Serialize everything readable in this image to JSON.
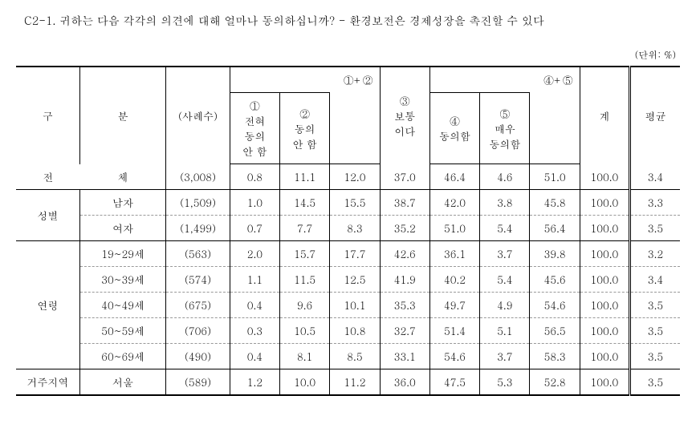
{
  "title": "C2-1. 귀하는 다음 각각의 의견에 대해 얼마나 동의하십니까? - 환경보전은 경제성장을 촉진할 수 있다",
  "unit": "(단위: %)",
  "headers": {
    "gu": "구",
    "bun": "분",
    "sample": "(사례수)",
    "group12": "①+②",
    "group45": "④+⑤",
    "col1": "①\n전혀\n동의\n안 함",
    "col2": "②\n동의\n안 함",
    "col12": "",
    "col3": "③\n보통\n이다",
    "col4": "④\n동의함",
    "col5": "⑤\n매우\n동의함",
    "col45": "",
    "total": "계",
    "avg": "평균"
  },
  "rows": [
    {
      "cat": "전",
      "sub": "체",
      "catspan": 1,
      "sample": "(3,008)",
      "c1": "0.8",
      "c2": "11.1",
      "c12": "12.0",
      "c3": "37.0",
      "c4": "46.4",
      "c5": "4.6",
      "c45": "51.0",
      "tot": "100.0",
      "avg": "3.4",
      "solid": true,
      "fullspan": true
    },
    {
      "cat": "성별",
      "sub": "남자",
      "catspan": 2,
      "sample": "(1,509)",
      "c1": "1.0",
      "c2": "14.5",
      "c12": "15.5",
      "c3": "38.7",
      "c4": "42.0",
      "c5": "3.8",
      "c45": "45.8",
      "tot": "100.0",
      "avg": "3.3"
    },
    {
      "cat": "",
      "sub": "여자",
      "sample": "(1,499)",
      "c1": "0.7",
      "c2": "7.7",
      "c12": "8.3",
      "c3": "35.2",
      "c4": "51.0",
      "c5": "5.4",
      "c45": "56.4",
      "tot": "100.0",
      "avg": "3.5",
      "solid": true
    },
    {
      "cat": "연령",
      "sub": "19~29세",
      "catspan": 5,
      "sample": "(563)",
      "c1": "2.0",
      "c2": "15.7",
      "c12": "17.7",
      "c3": "42.6",
      "c4": "36.1",
      "c5": "3.7",
      "c45": "39.8",
      "tot": "100.0",
      "avg": "3.2"
    },
    {
      "cat": "",
      "sub": "30~39세",
      "sample": "(574)",
      "c1": "1.1",
      "c2": "11.5",
      "c12": "12.5",
      "c3": "41.9",
      "c4": "40.2",
      "c5": "5.4",
      "c45": "45.6",
      "tot": "100.0",
      "avg": "3.4"
    },
    {
      "cat": "",
      "sub": "40~49세",
      "sample": "(675)",
      "c1": "0.4",
      "c2": "9.6",
      "c12": "10.1",
      "c3": "35.3",
      "c4": "49.7",
      "c5": "4.9",
      "c45": "54.6",
      "tot": "100.0",
      "avg": "3.5"
    },
    {
      "cat": "",
      "sub": "50~59세",
      "sample": "(706)",
      "c1": "0.3",
      "c2": "10.5",
      "c12": "10.8",
      "c3": "32.7",
      "c4": "51.4",
      "c5": "5.1",
      "c45": "56.5",
      "tot": "100.0",
      "avg": "3.5"
    },
    {
      "cat": "",
      "sub": "60~69세",
      "sample": "(490)",
      "c1": "0.4",
      "c2": "8.1",
      "c12": "8.5",
      "c3": "33.1",
      "c4": "54.6",
      "c5": "3.7",
      "c45": "58.3",
      "tot": "100.0",
      "avg": "3.5",
      "solid": true
    },
    {
      "cat": "거주지역",
      "sub": "서울",
      "catspan": 1,
      "sample": "(589)",
      "c1": "1.2",
      "c2": "10.0",
      "c12": "11.2",
      "c3": "36.0",
      "c4": "47.5",
      "c5": "5.3",
      "c45": "52.8",
      "tot": "100.0",
      "avg": "3.5",
      "last": true
    }
  ]
}
